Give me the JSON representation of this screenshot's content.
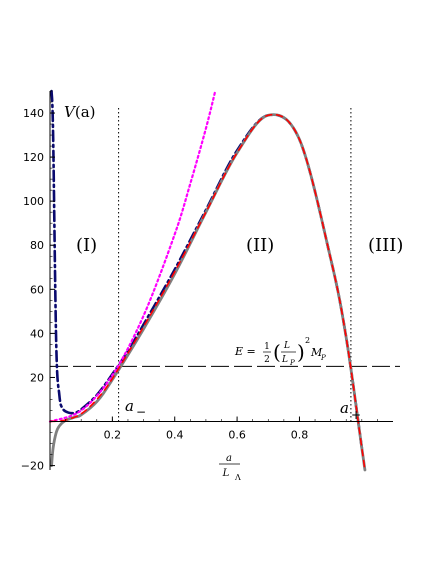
{
  "chart_data": {
    "type": "line",
    "title": "",
    "xlabel": "a / L_Λ",
    "ylabel": "V(a)",
    "xlim": [
      0,
      1.1
    ],
    "ylim": [
      -22,
      150
    ],
    "x_ticks": [
      0.2,
      0.4,
      0.6,
      0.8
    ],
    "x_tick_labels": [
      "0.2",
      "0.4",
      "0.6",
      "0.8"
    ],
    "y_ticks": [
      -20,
      20,
      40,
      60,
      80,
      100,
      120,
      140
    ],
    "y_tick_labels": [
      "−20",
      "20",
      "40",
      "60",
      "80",
      "100",
      "120",
      "140"
    ],
    "energy_level": 25,
    "vertical_markers": [
      {
        "x": 0.22,
        "label": "a",
        "sub": "−"
      },
      {
        "x": 0.965,
        "label": "a",
        "sub": "+"
      }
    ],
    "regions": [
      "(I)",
      "(II)",
      "(III)"
    ],
    "energy_label": {
      "lhs": "E = ",
      "half": "1",
      "half_den": "2",
      "L": "L",
      "LP": "L",
      "P": "P",
      "exp": "2",
      "M": "M",
      "Msub": "P"
    },
    "axis_label_y": {
      "V": "V",
      "a": "(a)"
    },
    "axis_label_x": {
      "num": "a",
      "den": "L",
      "sub": "Λ"
    },
    "series": [
      {
        "style": "dash-dot",
        "color": "#0a0a6e",
        "x": [
          0.005,
          0.01,
          0.02,
          0.03,
          0.04,
          0.06,
          0.08,
          0.1,
          0.15,
          0.2,
          0.25,
          0.3,
          0.4,
          0.5,
          0.6,
          0.7,
          0.8,
          0.9,
          0.95,
          1.0
        ],
        "y": [
          150,
          130,
          35,
          12,
          6,
          4,
          4,
          5.5,
          12,
          21.5,
          32,
          44,
          69,
          96,
          123,
          139,
          128,
          74,
          38,
          -12
        ]
      },
      {
        "style": "dotted",
        "color": "#ff00ff",
        "x": [
          0.0,
          0.1,
          0.2,
          0.3,
          0.4,
          0.45,
          0.5,
          0.53
        ],
        "y": [
          0,
          5,
          21,
          48,
          85,
          108,
          133,
          150
        ]
      },
      {
        "style": "solid",
        "color": "#808080",
        "x": [
          0.005,
          0.01,
          0.02,
          0.03,
          0.05,
          0.08,
          0.1,
          0.15,
          0.2,
          0.3,
          0.4,
          0.5,
          0.6,
          0.7,
          0.8,
          0.9,
          0.95,
          1.0,
          1.01
        ],
        "y": [
          -20,
          -12,
          -5,
          -2,
          0.5,
          2,
          3,
          9,
          19,
          42,
          67,
          95,
          122,
          139,
          128,
          74,
          38,
          -12,
          -22
        ]
      },
      {
        "style": "dashed",
        "color": "#ff0000",
        "x": [
          0.0,
          0.05,
          0.1,
          0.15,
          0.2,
          0.3,
          0.4,
          0.5,
          0.6,
          0.7,
          0.8,
          0.9,
          0.95,
          1.0,
          1.01
        ],
        "y": [
          0,
          0.7,
          3.5,
          10,
          19.5,
          43,
          68,
          95,
          122,
          139,
          128,
          74,
          38,
          -12,
          -22
        ]
      }
    ]
  }
}
